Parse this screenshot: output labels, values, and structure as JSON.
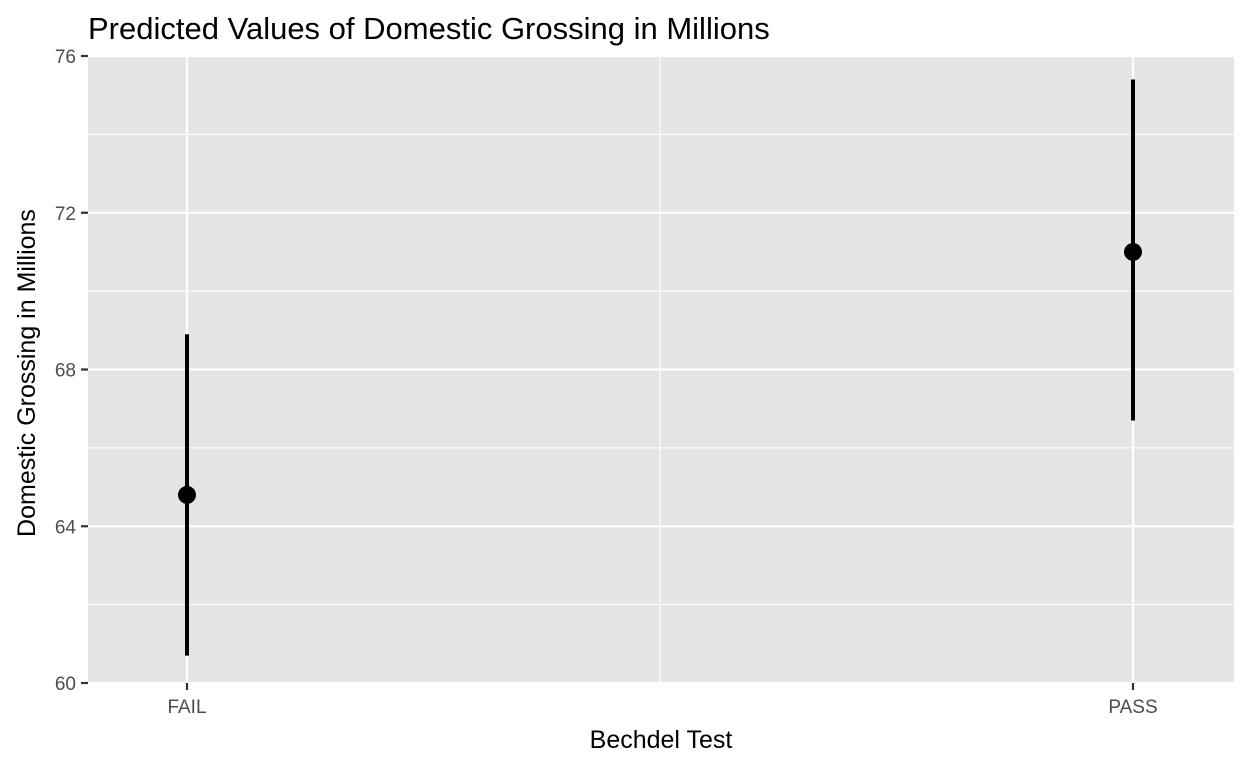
{
  "chart_data": {
    "type": "pointrange",
    "title": "Predicted Values of Domestic Grossing in Millions",
    "xlabel": "Bechdel Test",
    "ylabel": "Domestic Grossing in Millions",
    "categories": [
      "FAIL",
      "PASS"
    ],
    "points": [
      {
        "category": "FAIL",
        "value": 64.8,
        "lower": 60.7,
        "upper": 68.9
      },
      {
        "category": "PASS",
        "value": 71.0,
        "lower": 66.7,
        "upper": 75.4
      }
    ],
    "ylim": [
      60,
      76
    ],
    "y_ticks": [
      60,
      64,
      68,
      72,
      76
    ],
    "y_tick_labels": [
      "60",
      "64",
      "68",
      "72",
      "76"
    ],
    "grid": true,
    "legend": "none",
    "colors": {
      "panel": "#e5e5e5",
      "grid": "#ffffff",
      "mark": "#000000",
      "tick_text": "#4d4d4d"
    }
  }
}
